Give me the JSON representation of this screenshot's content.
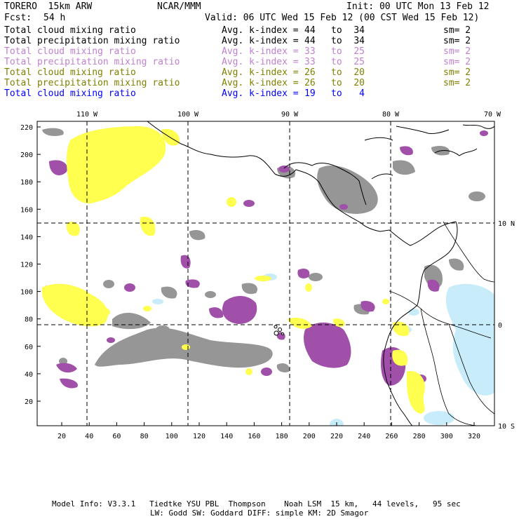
{
  "header": {
    "model": "TORERO  15km ARW",
    "source": "NCAR/MMM",
    "init": "Init: 00 UTC Mon 13 Feb 12",
    "fcst_label": "Fcst:",
    "fcst_value": "54 h",
    "valid": "Valid: 06 UTC Wed 15 Feb 12 (00 CST Wed 15 Feb 12)"
  },
  "legend": [
    {
      "field": "Total cloud mixing ratio",
      "kindex": "Avg. k-index =",
      "from": "44",
      "to_word": "to",
      "to": "34",
      "sm": "sm= 2",
      "color": "#000000"
    },
    {
      "field": "Total precipitation mixing ratio",
      "kindex": "Avg. k-index =",
      "from": "44",
      "to_word": "to",
      "to": "34",
      "sm": "sm= 2",
      "color": "#000000"
    },
    {
      "field": "Total cloud mixing ratio",
      "kindex": "Avg. k-index =",
      "from": "33",
      "to_word": "to",
      "to": "25",
      "sm": "sm= 2",
      "color": "#c080d0"
    },
    {
      "field": "Total precipitation mixing ratio",
      "kindex": "Avg. k-index =",
      "from": "33",
      "to_word": "to",
      "to": "25",
      "sm": "sm= 2",
      "color": "#c080d0"
    },
    {
      "field": "Total cloud mixing ratio",
      "kindex": "Avg. k-index =",
      "from": "26",
      "to_word": "to",
      "to": "20",
      "sm": "sm= 2",
      "color": "#808000"
    },
    {
      "field": "Total precipitation mixing ratio",
      "kindex": "Avg. k-index =",
      "from": "26",
      "to_word": "to",
      "to": "20",
      "sm": "sm= 2",
      "color": "#808000"
    },
    {
      "field": "Total cloud mixing ratio",
      "kindex": "Avg. k-index =",
      "from": "19",
      "to_word": "to",
      "to": "4",
      "sm": "",
      "color": "#0000ff"
    }
  ],
  "map": {
    "lon_labels": [
      "110 W",
      "100 W",
      "90 W",
      "80 W",
      "70 W"
    ],
    "lat_labels": [
      "10 N",
      "0",
      "10 S"
    ],
    "y_ticks": [
      "220",
      "200",
      "180",
      "160",
      "140",
      "120",
      "100",
      "80",
      "60",
      "40",
      "20"
    ],
    "x_ticks": [
      "20",
      "40",
      "60",
      "80",
      "100",
      "120",
      "140",
      "160",
      "180",
      "200",
      "220",
      "240",
      "260",
      "280",
      "300",
      "320"
    ],
    "colors": {
      "gray": "#969696",
      "purple": "#a050a8",
      "yellow": "#ffff50",
      "lightblue": "#c8ecfa",
      "grid": "#000000"
    }
  },
  "footer": {
    "line1": "Model Info: V3.3.1   Tiedtke YSU PBL  Thompson    Noah LSM  15 km,   44 levels,   95 sec",
    "line2": "LW: Godd SW: Goddard DIFF: simple KM: 2D Smagor"
  }
}
